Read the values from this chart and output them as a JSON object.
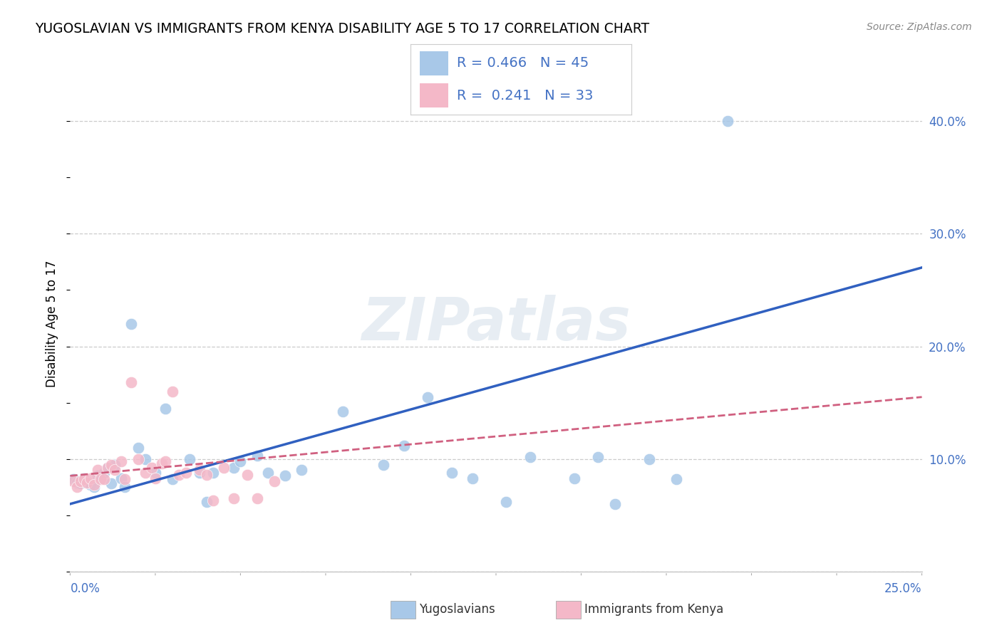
{
  "title": "YUGOSLAVIAN VS IMMIGRANTS FROM KENYA DISABILITY AGE 5 TO 17 CORRELATION CHART",
  "source": "Source: ZipAtlas.com",
  "ylabel": "Disability Age 5 to 17",
  "watermark": "ZIPatlas",
  "blue_color": "#a8c8e8",
  "pink_color": "#f4b8c8",
  "blue_line_color": "#3060c0",
  "pink_line_color": "#d06080",
  "right_tick_color": "#4472c4",
  "xlim": [
    0.0,
    0.25
  ],
  "ylim": [
    0.0,
    0.44
  ],
  "yticks": [
    0.0,
    0.1,
    0.2,
    0.3,
    0.4
  ],
  "ytick_labels": [
    "",
    "10.0%",
    "20.0%",
    "30.0%",
    "40.0%"
  ],
  "yug_x": [
    0.001,
    0.002,
    0.003,
    0.004,
    0.005,
    0.006,
    0.007,
    0.008,
    0.009,
    0.01,
    0.011,
    0.012,
    0.013,
    0.015,
    0.016,
    0.018,
    0.02,
    0.022,
    0.025,
    0.028,
    0.03,
    0.035,
    0.038,
    0.04,
    0.042,
    0.048,
    0.05,
    0.055,
    0.058,
    0.063,
    0.068,
    0.08,
    0.092,
    0.098,
    0.105,
    0.112,
    0.118,
    0.128,
    0.135,
    0.148,
    0.155,
    0.16,
    0.17,
    0.178,
    0.193
  ],
  "yug_y": [
    0.082,
    0.079,
    0.078,
    0.083,
    0.08,
    0.077,
    0.075,
    0.085,
    0.082,
    0.088,
    0.092,
    0.078,
    0.095,
    0.083,
    0.075,
    0.22,
    0.11,
    0.1,
    0.088,
    0.145,
    0.082,
    0.1,
    0.088,
    0.062,
    0.088,
    0.092,
    0.098,
    0.103,
    0.088,
    0.085,
    0.09,
    0.142,
    0.095,
    0.112,
    0.155,
    0.088,
    0.083,
    0.062,
    0.102,
    0.083,
    0.102,
    0.06,
    0.1,
    0.082,
    0.4
  ],
  "ken_x": [
    0.001,
    0.002,
    0.003,
    0.004,
    0.005,
    0.006,
    0.007,
    0.008,
    0.009,
    0.01,
    0.011,
    0.012,
    0.013,
    0.015,
    0.016,
    0.018,
    0.02,
    0.022,
    0.024,
    0.025,
    0.027,
    0.028,
    0.03,
    0.032,
    0.034,
    0.038,
    0.04,
    0.042,
    0.045,
    0.048,
    0.052,
    0.055,
    0.06
  ],
  "ken_y": [
    0.08,
    0.075,
    0.08,
    0.082,
    0.079,
    0.083,
    0.077,
    0.09,
    0.082,
    0.082,
    0.092,
    0.095,
    0.09,
    0.098,
    0.082,
    0.168,
    0.1,
    0.088,
    0.092,
    0.083,
    0.096,
    0.098,
    0.16,
    0.086,
    0.088,
    0.09,
    0.086,
    0.063,
    0.092,
    0.065,
    0.086,
    0.065,
    0.08
  ],
  "blue_trend_x0": 0.0,
  "blue_trend_y0": 0.06,
  "blue_trend_x1": 0.25,
  "blue_trend_y1": 0.27,
  "pink_trend_x0": 0.0,
  "pink_trend_x1": 0.25,
  "pink_trend_y0": 0.085,
  "pink_trend_y1": 0.155
}
